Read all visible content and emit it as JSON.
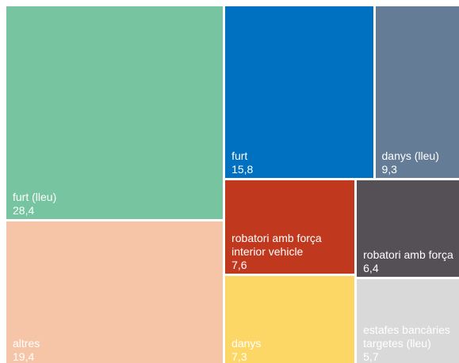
{
  "chart_data": {
    "type": "treemap",
    "categories": [
      "furt (lleu)",
      "altres",
      "furt",
      "danys (lleu)",
      "robatori amb força interior vehicle",
      "robatori amb força",
      "danys",
      "estafes bancàries targetes (lleu)"
    ],
    "values": [
      28.4,
      19.4,
      15.8,
      9.3,
      7.6,
      6.4,
      7.3,
      5.7
    ],
    "value_labels": [
      "28,4",
      "19,4",
      "15,8",
      "9,3",
      "7,6",
      "6,4",
      "7,3",
      "5,7"
    ],
    "colors": [
      "#76c4a0",
      "#f6c5a7",
      "#0070c0",
      "#647c96",
      "#c0391f",
      "#545055",
      "#fdd765",
      "#d9d9d9"
    ]
  }
}
